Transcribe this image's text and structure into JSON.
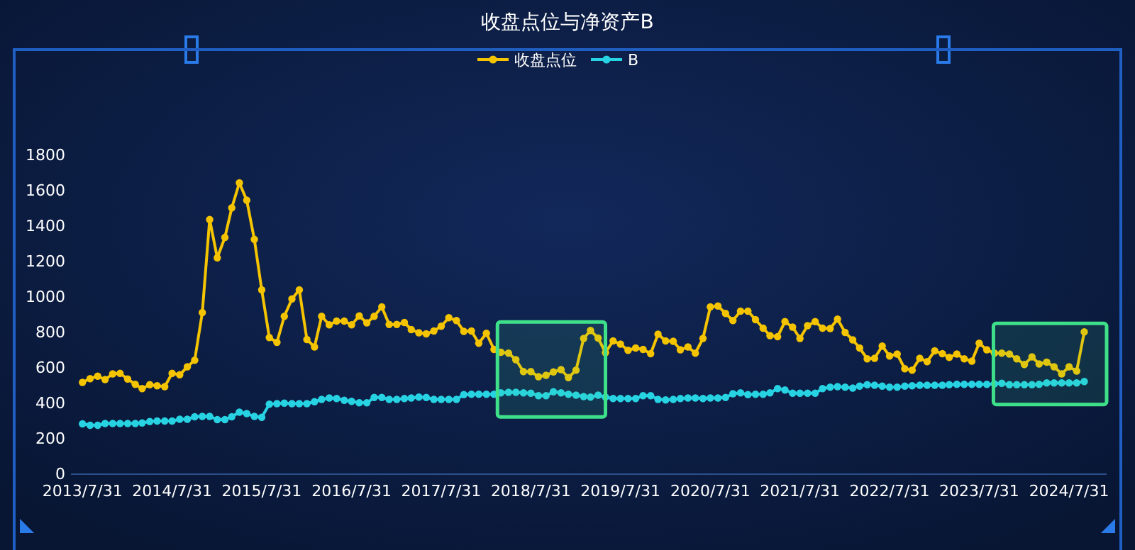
{
  "chart_data": {
    "type": "line",
    "title": "收盘点位与净资产B",
    "x": [
      "2013-07",
      "2013-08",
      "2013-09",
      "2013-10",
      "2013-11",
      "2013-12",
      "2014-01",
      "2014-02",
      "2014-03",
      "2014-04",
      "2014-05",
      "2014-06",
      "2014-07",
      "2014-08",
      "2014-09",
      "2014-10",
      "2014-11",
      "2014-12",
      "2015-01",
      "2015-02",
      "2015-03",
      "2015-04",
      "2015-05",
      "2015-06",
      "2015-07",
      "2015-08",
      "2015-09",
      "2015-10",
      "2015-11",
      "2015-12",
      "2016-01",
      "2016-02",
      "2016-03",
      "2016-04",
      "2016-05",
      "2016-06",
      "2016-07",
      "2016-08",
      "2016-09",
      "2016-10",
      "2016-11",
      "2016-12",
      "2017-01",
      "2017-02",
      "2017-03",
      "2017-04",
      "2017-05",
      "2017-06",
      "2017-07",
      "2017-08",
      "2017-09",
      "2017-10",
      "2017-11",
      "2017-12",
      "2018-01",
      "2018-02",
      "2018-03",
      "2018-04",
      "2018-05",
      "2018-06",
      "2018-07",
      "2018-08",
      "2018-09",
      "2018-10",
      "2018-11",
      "2018-12",
      "2019-01",
      "2019-02",
      "2019-03",
      "2019-04",
      "2019-05",
      "2019-06",
      "2019-07",
      "2019-08",
      "2019-09",
      "2019-10",
      "2019-11",
      "2019-12",
      "2020-01",
      "2020-02",
      "2020-03",
      "2020-04",
      "2020-05",
      "2020-06",
      "2020-07",
      "2020-08",
      "2020-09",
      "2020-10",
      "2020-11",
      "2020-12",
      "2021-01",
      "2021-02",
      "2021-03",
      "2021-04",
      "2021-05",
      "2021-06",
      "2021-07",
      "2021-08",
      "2021-09",
      "2021-10",
      "2021-11",
      "2021-12",
      "2022-01",
      "2022-02",
      "2022-03",
      "2022-04",
      "2022-05",
      "2022-06",
      "2022-07",
      "2022-08",
      "2022-09",
      "2022-10",
      "2022-11",
      "2022-12",
      "2023-01",
      "2023-02",
      "2023-03",
      "2023-04",
      "2023-05",
      "2023-06",
      "2023-07",
      "2023-08",
      "2023-09",
      "2023-10",
      "2023-11",
      "2023-12",
      "2024-01",
      "2024-02",
      "2024-03",
      "2024-04",
      "2024-05",
      "2024-06",
      "2024-07",
      "2024-08",
      "2024-09"
    ],
    "series": [
      {
        "name": "收盘点位",
        "color": "#f5c400",
        "values": [
          514,
          535,
          549,
          530,
          562,
          565,
          533,
          503,
          479,
          501,
          495,
          490,
          565,
          557,
          602,
          639,
          908,
          1433,
          1217,
          1332,
          1499,
          1640,
          1542,
          1321,
          1036,
          767,
          740,
          887,
          985,
          1036,
          756,
          714,
          887,
          839,
          860,
          860,
          839,
          889,
          850,
          887,
          940,
          841,
          841,
          852,
          812,
          794,
          788,
          804,
          831,
          879,
          863,
          802,
          804,
          735,
          791,
          700,
          684,
          679,
          642,
          575,
          575,
          546,
          554,
          573,
          586,
          541,
          583,
          762,
          807,
          764,
          682,
          748,
          730,
          695,
          708,
          700,
          676,
          786,
          748,
          746,
          698,
          714,
          679,
          762,
          940,
          945,
          903,
          863,
          916,
          916,
          868,
          820,
          778,
          772,
          857,
          826,
          762,
          834,
          857,
          820,
          818,
          871,
          796,
          754,
          708,
          647,
          650,
          719,
          663,
          674,
          591,
          583,
          650,
          631,
          692,
          676,
          655,
          674,
          647,
          634,
          735,
          698,
          679,
          679,
          674,
          647,
          615,
          658,
          618,
          628,
          602,
          562,
          602,
          578,
          799
        ]
      },
      {
        "name": "B",
        "color": "#27d3e3",
        "values": [
          280,
          272,
          272,
          282,
          282,
          282,
          282,
          282,
          285,
          293,
          296,
          296,
          296,
          306,
          306,
          320,
          322,
          322,
          304,
          304,
          320,
          346,
          338,
          322,
          317,
          391,
          394,
          397,
          394,
          394,
          394,
          405,
          418,
          426,
          423,
          413,
          407,
          399,
          399,
          429,
          429,
          418,
          418,
          423,
          426,
          431,
          429,
          418,
          418,
          418,
          418,
          445,
          447,
          447,
          447,
          447,
          455,
          458,
          458,
          455,
          453,
          439,
          439,
          461,
          455,
          447,
          442,
          434,
          431,
          442,
          431,
          423,
          423,
          423,
          423,
          439,
          439,
          418,
          415,
          418,
          423,
          426,
          426,
          423,
          426,
          426,
          429,
          450,
          455,
          445,
          447,
          447,
          455,
          479,
          471,
          453,
          453,
          453,
          453,
          479,
          487,
          490,
          487,
          482,
          493,
          501,
          498,
          493,
          487,
          487,
          493,
          495,
          498,
          498,
          498,
          498,
          501,
          503,
          503,
          503,
          503,
          503,
          506,
          509,
          501,
          501,
          501,
          501,
          503,
          511,
          511,
          511,
          511,
          511,
          519
        ]
      }
    ],
    "xlim": [
      "2013-05-15",
      "2024-12-01"
    ],
    "xticks": [
      {
        "value": "2013-07",
        "label": "2013/7/31"
      },
      {
        "value": "2014-07",
        "label": "2014/7/31"
      },
      {
        "value": "2015-07",
        "label": "2015/7/31"
      },
      {
        "value": "2016-07",
        "label": "2016/7/31"
      },
      {
        "value": "2017-07",
        "label": "2017/7/31"
      },
      {
        "value": "2018-07",
        "label": "2018/7/31"
      },
      {
        "value": "2019-07",
        "label": "2019/7/31"
      },
      {
        "value": "2020-07",
        "label": "2020/7/31"
      },
      {
        "value": "2021-07",
        "label": "2021/7/31"
      },
      {
        "value": "2022-07",
        "label": "2022/7/31"
      },
      {
        "value": "2023-07",
        "label": "2023/7/31"
      },
      {
        "value": "2024-07",
        "label": "2024/7/31"
      }
    ],
    "ylim": [
      0,
      1800
    ],
    "yticks": [
      0,
      200,
      400,
      600,
      800,
      1000,
      1200,
      1400,
      1600,
      1800
    ],
    "bands": [
      {
        "axis": "x",
        "from": "2018-02-15",
        "to": "2019-05-01",
        "color": "#3ee08a"
      },
      {
        "axis": "x",
        "from": "2023-08-28",
        "to": "2024-12-01",
        "color": "#3ee08a"
      }
    ],
    "legend": "top",
    "marker": "circle",
    "line_style": "solid",
    "grid": false
  }
}
